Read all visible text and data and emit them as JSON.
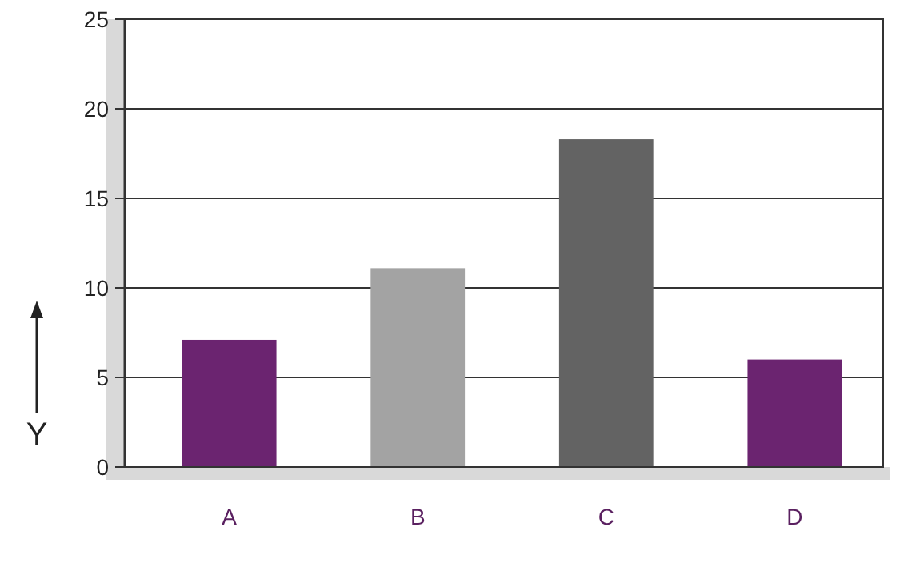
{
  "chart_data": {
    "type": "bar",
    "ylabel": "Y",
    "categories": [
      "A",
      "B",
      "C",
      "D"
    ],
    "values": [
      7.1,
      11.1,
      18.3,
      6.0
    ],
    "colors": [
      "#6b2470",
      "#a3a3a3",
      "#636363",
      "#6b2470"
    ],
    "ylim": [
      0,
      25
    ],
    "yticks": [
      0,
      5,
      10,
      15,
      20,
      25
    ],
    "grid": true
  }
}
